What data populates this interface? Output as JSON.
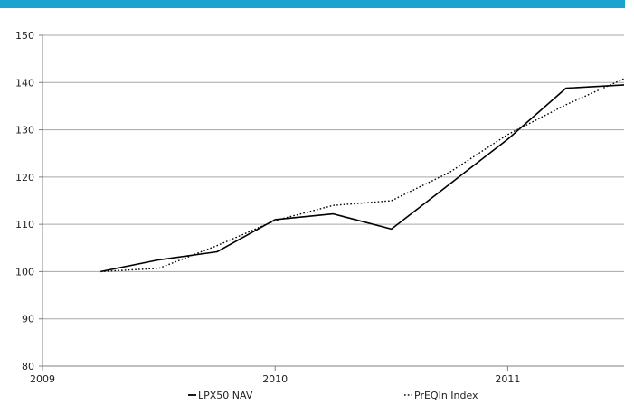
{
  "colors": {
    "top_bar": "#1aa3cf",
    "grid": "#a6a6a6",
    "lpx": "#000000",
    "preqin": "#000000"
  },
  "chart_data": {
    "type": "line",
    "title": "",
    "xlabel": "",
    "ylabel": "",
    "xlim": [
      2009,
      2011.5
    ],
    "ylim": [
      80,
      150
    ],
    "x_ticks": [
      2009,
      2010,
      2011
    ],
    "y_ticks": [
      80,
      90,
      100,
      110,
      120,
      130,
      140,
      150
    ],
    "grid": "horizontal",
    "legend_position": "bottom",
    "series": [
      {
        "name": "LPX50 NAV",
        "style": "solid",
        "x": [
          2009.25,
          2009.5,
          2009.75,
          2010.0,
          2010.25,
          2010.5,
          2010.75,
          2011.0,
          2011.25,
          2011.5
        ],
        "values": [
          100,
          102.5,
          104.2,
          111,
          112.2,
          109,
          118.5,
          128,
          138.8,
          139.5
        ]
      },
      {
        "name": "PrEQIn Index",
        "style": "dotted",
        "x": [
          2009.25,
          2009.5,
          2009.75,
          2010.0,
          2010.25,
          2010.5,
          2010.75,
          2011.0,
          2011.25,
          2011.5
        ],
        "values": [
          100,
          100.7,
          105.5,
          110.8,
          114,
          115,
          121,
          129,
          135.3,
          140.8
        ]
      }
    ]
  }
}
